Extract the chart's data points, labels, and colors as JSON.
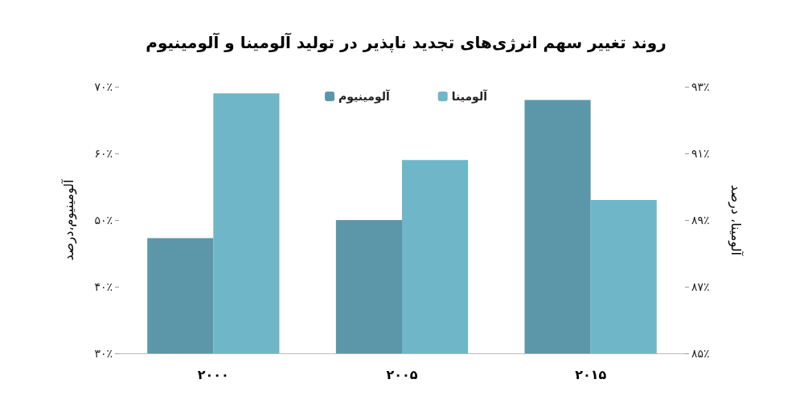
{
  "chart_data": {
    "type": "bar",
    "title": "روند تغییر سهم انرژی‌های تجدید ناپذیر در تولید آلومینا و آلومینیوم",
    "ylabel": "آلومینیوم،درصد",
    "y2label": "آلومینا، درصد",
    "categories": [
      "۲۰۰۰",
      "۲۰۰۵",
      "۲۰۱۵"
    ],
    "series": [
      {
        "name": "آلومینیوم",
        "color": "#5b97a8",
        "values": [
          47.3,
          50.0,
          68.0
        ]
      },
      {
        "name": "آلومینا",
        "color": "#6fb6c9",
        "values": [
          92.8,
          90.8,
          89.6
        ],
        "axis": "y2"
      }
    ],
    "ylim": [
      30,
      70
    ],
    "yticks": [
      {
        "value": 30,
        "label": "۳۰٪"
      },
      {
        "value": 40,
        "label": "۴۰٪"
      },
      {
        "value": 50,
        "label": "۵۰٪"
      },
      {
        "value": 60,
        "label": "۶۰٪"
      },
      {
        "value": 70,
        "label": "۷۰٪"
      }
    ],
    "y2lim": [
      85,
      93
    ],
    "y2ticks": [
      {
        "value": 85,
        "label": "۸۵٪"
      },
      {
        "value": 87,
        "label": "۸۷٪"
      },
      {
        "value": 89,
        "label": "۸۹٪"
      },
      {
        "value": 91,
        "label": "۹۱٪"
      },
      {
        "value": 93,
        "label": "۹۳٪"
      }
    ],
    "legend": "top",
    "grid": false
  }
}
